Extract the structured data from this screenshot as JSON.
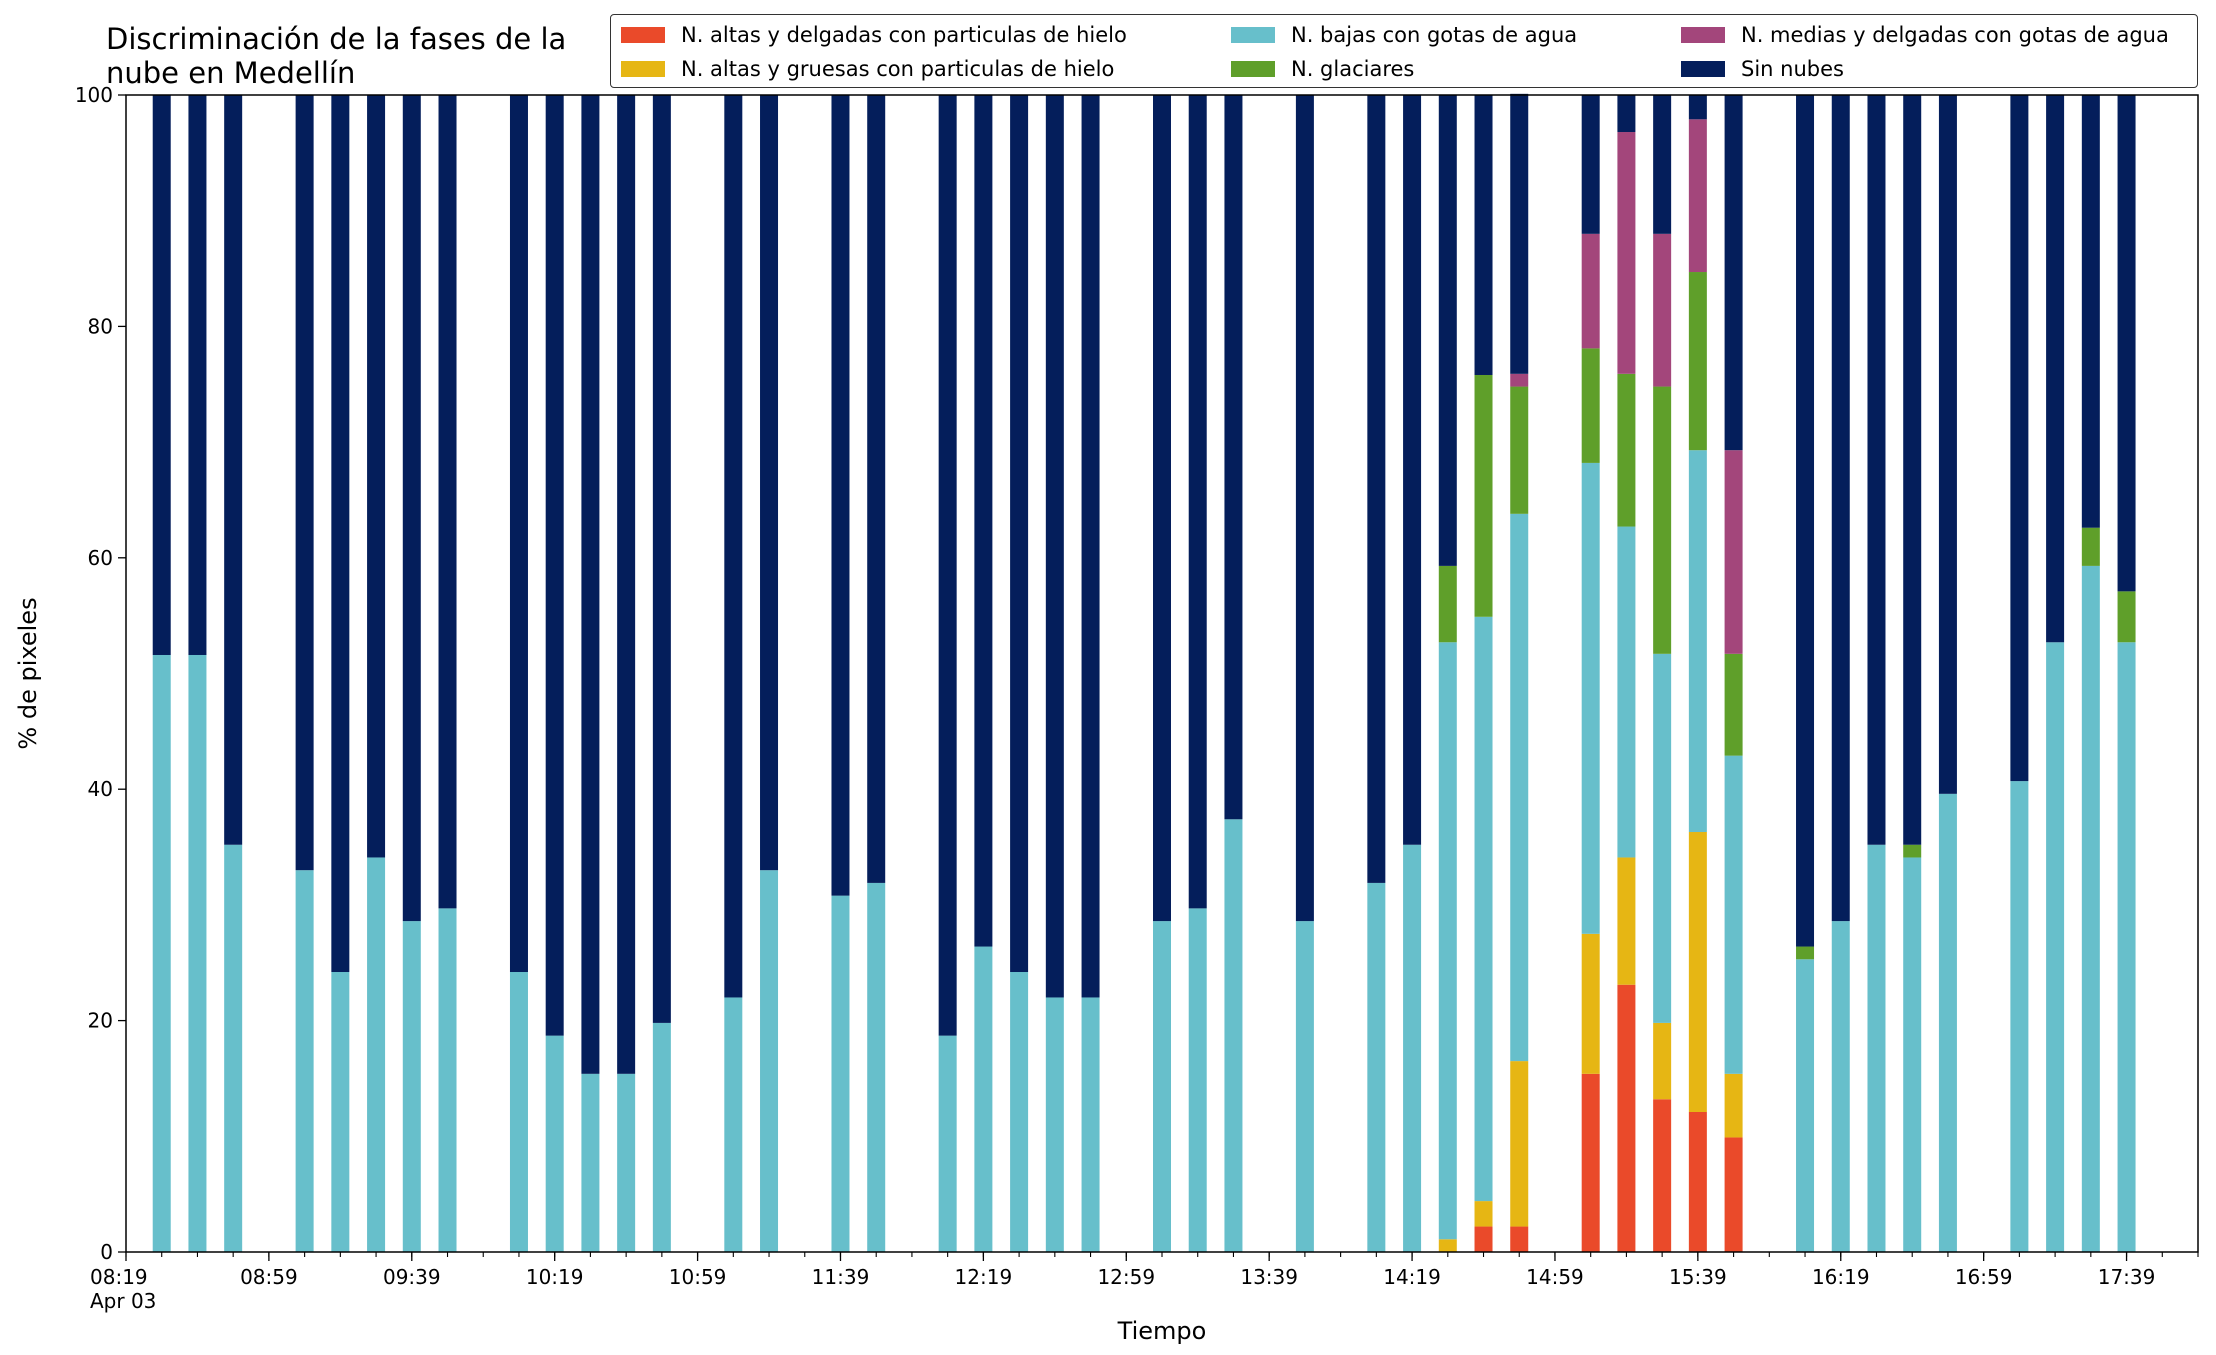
{
  "chart_data": {
    "type": "bar",
    "stacked": true,
    "title": "Discriminación de la fases de la\nnube en Medellín",
    "xlabel": "Tiempo",
    "ylabel": "% de pixeles",
    "ylim": [
      0,
      100
    ],
    "yticks": [
      0,
      20,
      40,
      60,
      80,
      100
    ],
    "xticks": [
      "08:19\nApr 03",
      "08:59",
      "09:39",
      "10:19",
      "10:59",
      "11:39",
      "12:19",
      "12:59",
      "13:39",
      "14:19",
      "14:59",
      "15:39",
      "16:19",
      "16:59",
      "17:39"
    ],
    "x_unit_minutes": 10,
    "x_start": "08:19",
    "x_end": "17:59",
    "legend_location": "upper right",
    "grid": false,
    "times": [
      "08:29",
      "08:39",
      "08:49",
      "09:09",
      "09:19",
      "09:29",
      "09:39",
      "09:49",
      "10:09",
      "10:19",
      "10:29",
      "10:39",
      "10:49",
      "11:09",
      "11:19",
      "11:39",
      "11:49",
      "12:09",
      "12:19",
      "12:29",
      "12:39",
      "12:49",
      "13:09",
      "13:19",
      "13:29",
      "13:49",
      "14:09",
      "14:19",
      "14:29",
      "14:39",
      "14:49",
      "15:09",
      "15:19",
      "15:29",
      "15:39",
      "15:49",
      "16:09",
      "16:19",
      "16:29",
      "16:39",
      "16:49",
      "17:09",
      "17:19",
      "17:29",
      "17:39"
    ],
    "series": [
      {
        "name": "N. altas y delgadas con particulas de hielo",
        "color": "#ea4a2a",
        "values": [
          0,
          0,
          0,
          0,
          0,
          0,
          0,
          0,
          0,
          0,
          0,
          0,
          0,
          0,
          0,
          0,
          0,
          0,
          0,
          0,
          0,
          0,
          0,
          0,
          0,
          0,
          0,
          0,
          0,
          2.2,
          2.2,
          15.4,
          23.1,
          13.2,
          12.1,
          9.9,
          0,
          0,
          0,
          0,
          0,
          0,
          0,
          0,
          0
        ]
      },
      {
        "name": "N. altas y gruesas con particulas de hielo",
        "color": "#e6b614",
        "values": [
          0,
          0,
          0,
          0,
          0,
          0,
          0,
          0,
          0,
          0,
          0,
          0,
          0,
          0,
          0,
          0,
          0,
          0,
          0,
          0,
          0,
          0,
          0,
          0,
          0,
          0,
          0,
          0,
          1.1,
          2.2,
          14.3,
          12.1,
          11.0,
          6.6,
          24.2,
          5.5,
          0,
          0,
          0,
          0,
          0,
          0,
          0,
          0,
          0
        ]
      },
      {
        "name": "N. bajas con gotas de agua",
        "color": "#67bfcb",
        "values": [
          51.6,
          51.6,
          35.2,
          33.0,
          24.2,
          34.1,
          28.6,
          29.7,
          24.2,
          18.7,
          15.4,
          15.4,
          19.8,
          22.0,
          33.0,
          30.8,
          31.9,
          18.7,
          26.4,
          24.2,
          22.0,
          22.0,
          28.6,
          29.7,
          37.4,
          28.6,
          31.9,
          35.2,
          51.6,
          50.5,
          47.3,
          40.7,
          28.6,
          31.9,
          33.0,
          27.5,
          25.3,
          28.6,
          35.2,
          34.1,
          39.6,
          40.7,
          52.7,
          59.3,
          52.7
        ]
      },
      {
        "name": "N. glaciares",
        "color": "#5f9f2a",
        "values": [
          0,
          0,
          0,
          0,
          0,
          0,
          0,
          0,
          0,
          0,
          0,
          0,
          0,
          0,
          0,
          0,
          0,
          0,
          0,
          0,
          0,
          0,
          0,
          0,
          0,
          0,
          0,
          0,
          6.6,
          20.9,
          11.0,
          9.9,
          13.2,
          23.1,
          15.4,
          8.8,
          1.1,
          0,
          0,
          1.1,
          0,
          0,
          0,
          3.3,
          4.4
        ]
      },
      {
        "name": "N. medias y delgadas con gotas de agua",
        "color": "#a3467b",
        "values": [
          0,
          0,
          0,
          0,
          0,
          0,
          0,
          0,
          0,
          0,
          0,
          0,
          0,
          0,
          0,
          0,
          0,
          0,
          0,
          0,
          0,
          0,
          0,
          0,
          0,
          0,
          0,
          0,
          0,
          0,
          1.1,
          9.9,
          20.9,
          13.2,
          13.2,
          17.6,
          0,
          0,
          0,
          0,
          0,
          0,
          0,
          0,
          0
        ]
      },
      {
        "name": "Sin nubes",
        "color": "#041e5b",
        "values": [
          48.4,
          48.4,
          64.8,
          67.0,
          75.8,
          65.9,
          71.4,
          70.3,
          75.8,
          81.3,
          84.6,
          84.6,
          80.2,
          78.0,
          67.0,
          69.2,
          68.1,
          81.3,
          73.6,
          75.8,
          78.0,
          78.0,
          71.4,
          70.3,
          62.6,
          71.4,
          68.1,
          64.8,
          40.7,
          24.2,
          24.2,
          12.0,
          3.2,
          12.0,
          2.1,
          30.7,
          73.6,
          71.4,
          64.8,
          64.8,
          60.4,
          59.3,
          47.3,
          37.4,
          42.9
        ]
      }
    ]
  }
}
